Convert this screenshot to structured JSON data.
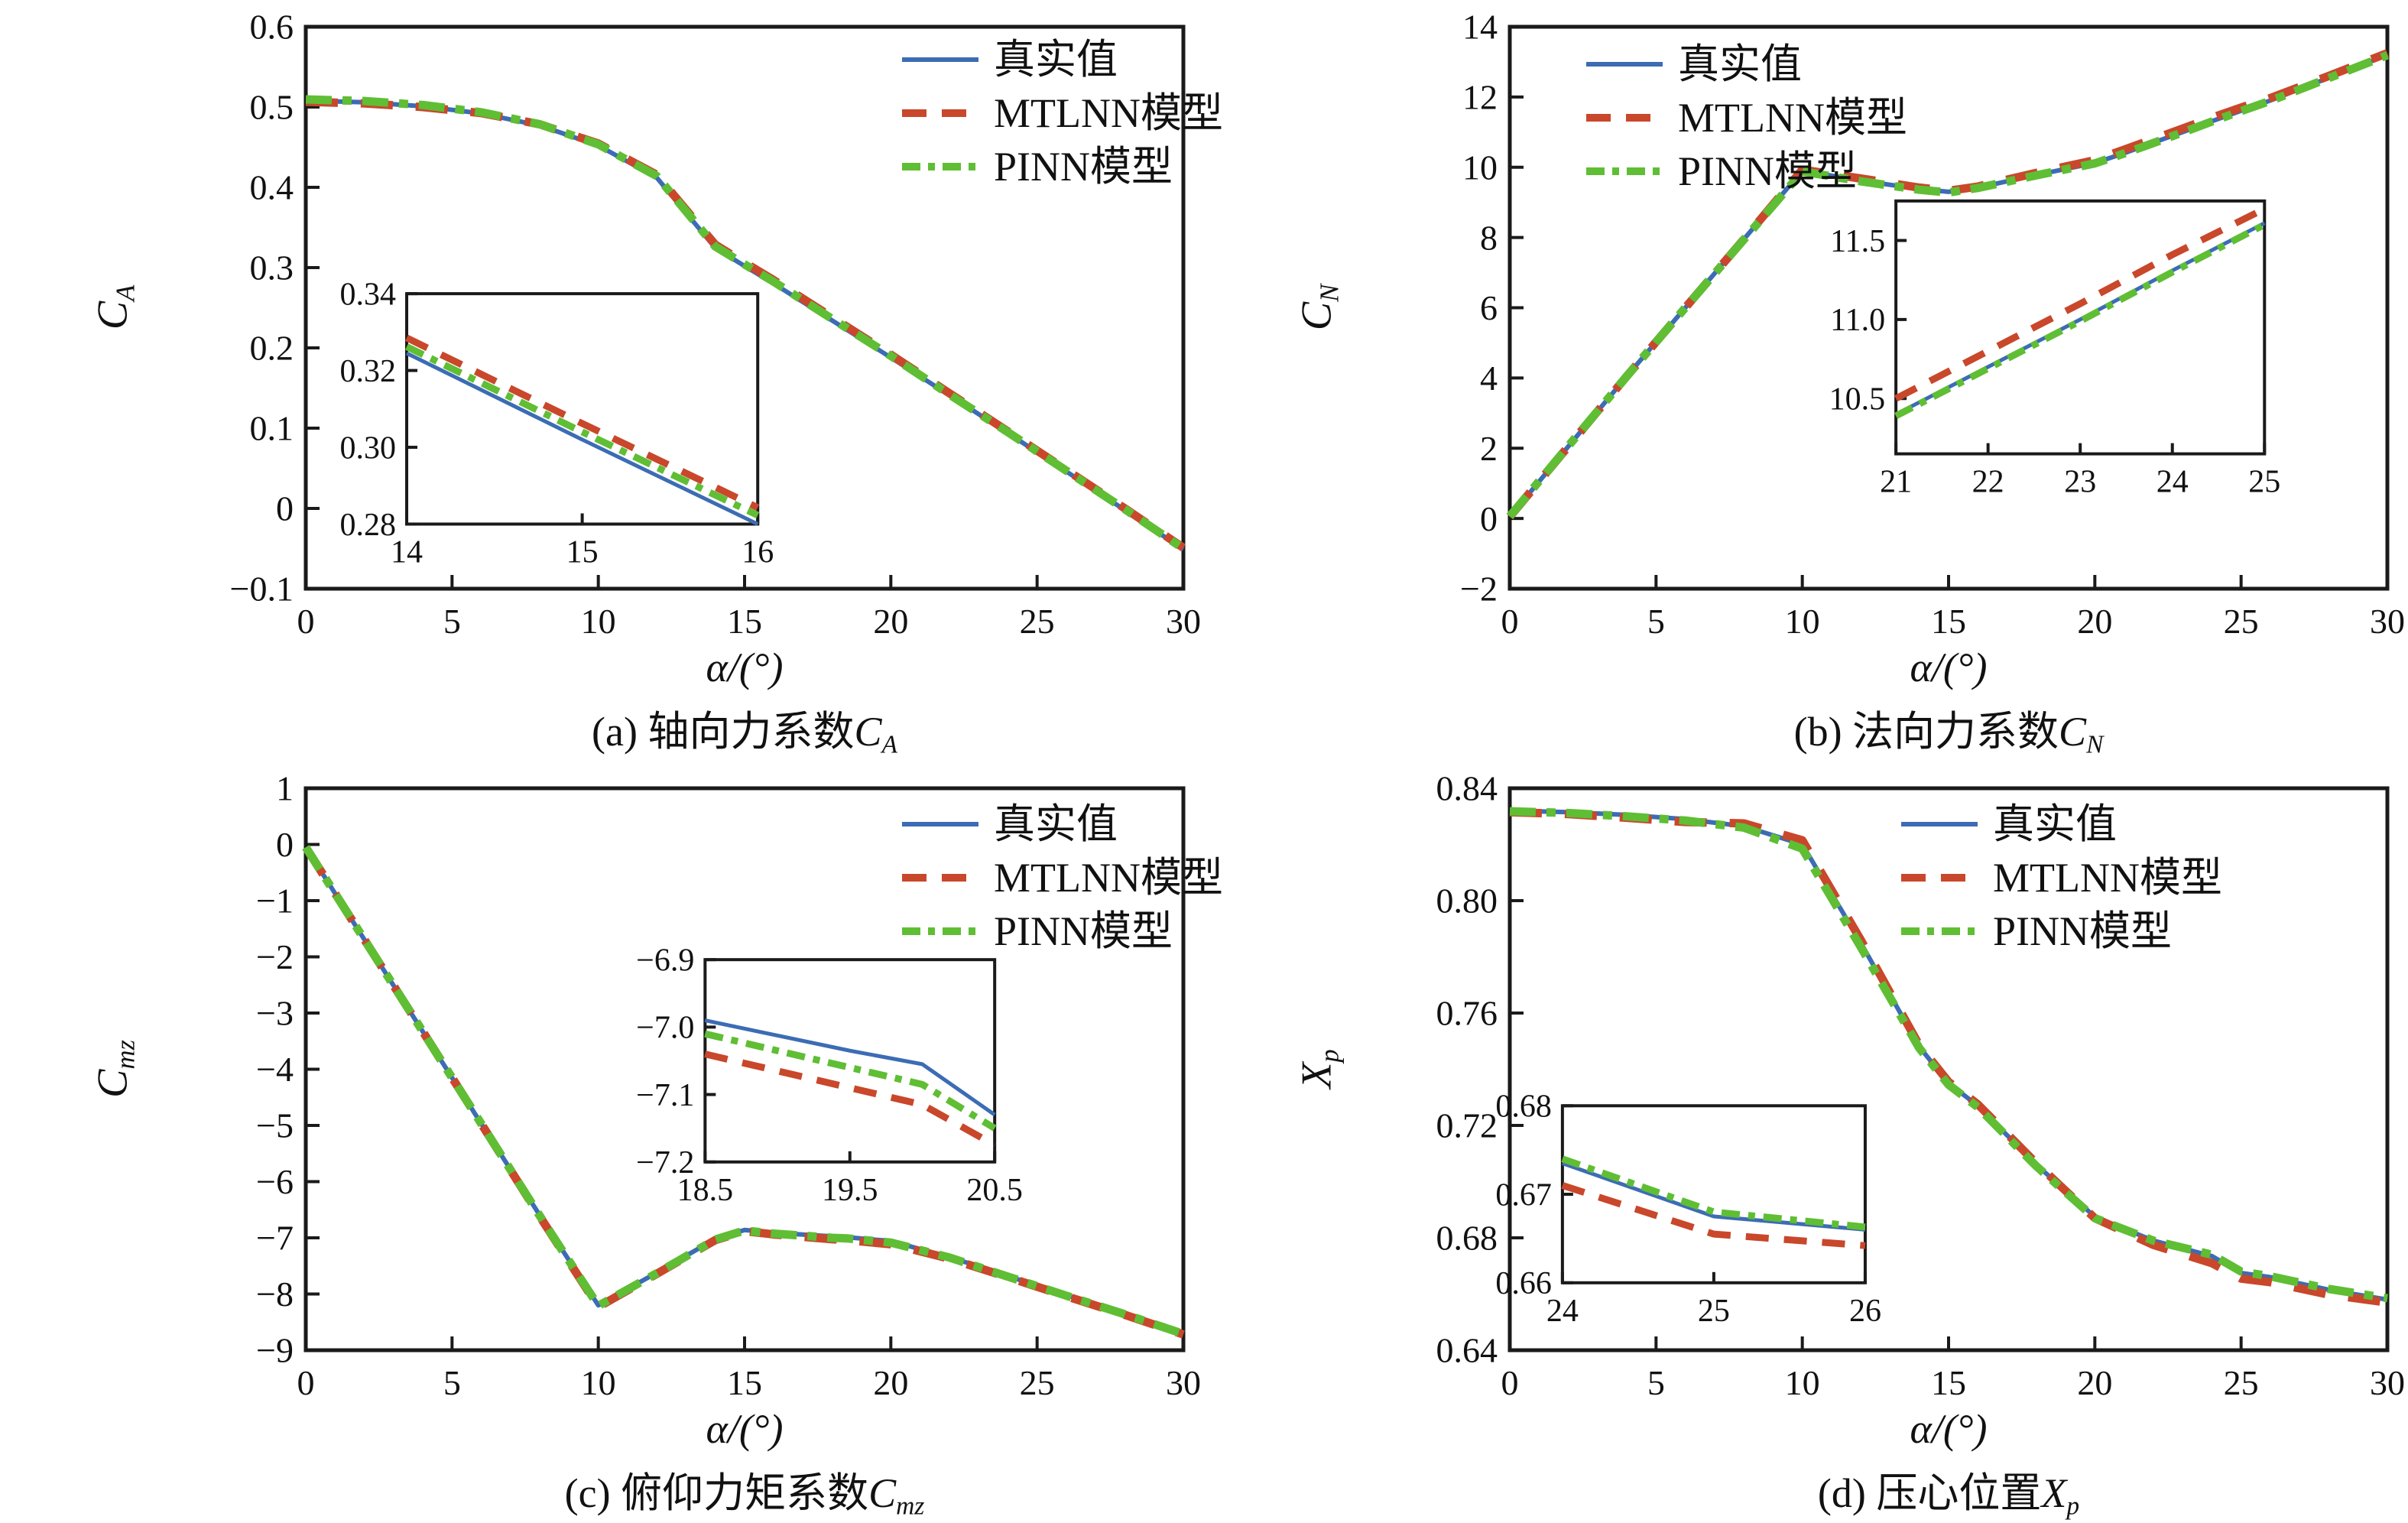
{
  "colors": {
    "true": "#3c6cb4",
    "mtlnn": "#c9472b",
    "pinn": "#5fbe34",
    "axis": "#1a1a1a"
  },
  "legend": {
    "true_label": "真实值",
    "mtlnn_label": "MTLNN模型",
    "pinn_label": "PINN模型"
  },
  "chart_data": [
    {
      "id": "a",
      "type": "line",
      "title": {
        "prefix": "(a) 轴向力系数",
        "symbol": "C",
        "symbol_sub": "A"
      },
      "xlabel": "α/(°)",
      "ylabel": {
        "symbol": "C",
        "symbol_sub": "A"
      },
      "xlim": [
        0,
        30
      ],
      "ylim": [
        -0.1,
        0.6
      ],
      "xticks": {
        "values": [
          0,
          5,
          10,
          15,
          20,
          25,
          30
        ],
        "labels": [
          "0",
          "5",
          "10",
          "15",
          "20",
          "25",
          "30"
        ]
      },
      "yticks": {
        "values": [
          0.6,
          0.5,
          0.4,
          0.3,
          0.2,
          0.1,
          0,
          -0.1
        ],
        "labels": [
          "0.6",
          "0.5",
          "0.4",
          "0.3",
          "0.2",
          "0.1",
          "0",
          "−0.1"
        ]
      },
      "grid": false,
      "legend_position": "upper-right",
      "x": [
        0,
        2,
        4,
        6,
        8,
        10,
        12,
        14,
        15,
        16,
        18,
        20,
        22,
        24,
        26,
        28,
        30
      ],
      "series": [
        {
          "name": "真实值",
          "key": "true",
          "values": [
            0.508,
            0.506,
            0.501,
            0.492,
            0.477,
            0.452,
            0.412,
            0.3245,
            0.302,
            0.28,
            0.234,
            0.188,
            0.141,
            0.094,
            0.046,
            -0.002,
            -0.051
          ]
        },
        {
          "name": "MTLNN模型",
          "key": "mtlnn",
          "values": [
            0.5065,
            0.5045,
            0.5,
            0.4925,
            0.4785,
            0.4545,
            0.4155,
            0.3285,
            0.3062,
            0.2843,
            0.238,
            0.1915,
            0.1435,
            0.096,
            0.048,
            0.0,
            -0.049
          ]
        },
        {
          "name": "PINN模型",
          "key": "pinn",
          "values": [
            0.5095,
            0.5075,
            0.5025,
            0.4935,
            0.4785,
            0.4535,
            0.414,
            0.3262,
            0.304,
            0.2823,
            0.236,
            0.19,
            0.142,
            0.095,
            0.047,
            -0.001,
            -0.05
          ]
        }
      ],
      "inset": {
        "xlim": [
          14,
          16
        ],
        "ylim": [
          0.28,
          0.34
        ],
        "xticks": {
          "values": [
            14,
            15,
            16
          ],
          "labels": [
            "14",
            "15",
            "16"
          ]
        },
        "yticks": {
          "values": [
            0.34,
            0.32,
            0.3,
            0.28
          ],
          "labels": [
            "0.34",
            "0.32",
            "0.30",
            "0.28"
          ]
        },
        "x": [
          14,
          15,
          16
        ],
        "series": [
          {
            "key": "true",
            "values": [
              0.3245,
              0.302,
              0.28
            ]
          },
          {
            "key": "mtlnn",
            "values": [
              0.3285,
              0.3062,
              0.2843
            ]
          },
          {
            "key": "pinn",
            "values": [
              0.3262,
              0.304,
              0.2823
            ]
          }
        ]
      }
    },
    {
      "id": "b",
      "type": "line",
      "title": {
        "prefix": "(b) 法向力系数",
        "symbol": "C",
        "symbol_sub": "N"
      },
      "xlabel": "α/(°)",
      "ylabel": {
        "symbol": "C",
        "symbol_sub": "N"
      },
      "xlim": [
        0,
        30
      ],
      "ylim": [
        -2,
        14
      ],
      "xticks": {
        "values": [
          0,
          5,
          10,
          15,
          20,
          25,
          30
        ],
        "labels": [
          "0",
          "5",
          "10",
          "15",
          "20",
          "25",
          "30"
        ]
      },
      "yticks": {
        "values": [
          14,
          12,
          10,
          8,
          6,
          4,
          2,
          0,
          -2
        ],
        "labels": [
          "14",
          "12",
          "10",
          "8",
          "6",
          "4",
          "2",
          "0",
          "−2"
        ]
      },
      "grid": false,
      "legend_position": "upper-left",
      "x": [
        0,
        2,
        4,
        6,
        8,
        10,
        12,
        14,
        15,
        16,
        18,
        20,
        21,
        22,
        23,
        24,
        25,
        26,
        28,
        30
      ],
      "series": [
        {
          "name": "真实值",
          "key": "true",
          "values": [
            0.05,
            2.05,
            4.05,
            6.0,
            7.95,
            9.9,
            9.62,
            9.38,
            9.3,
            9.42,
            9.78,
            10.12,
            10.4,
            10.7,
            11.0,
            11.31,
            11.61,
            11.9,
            12.55,
            13.2
          ]
        },
        {
          "name": "MTLNN模型",
          "key": "mtlnn",
          "values": [
            0.05,
            2.05,
            4.05,
            6.0,
            7.95,
            9.93,
            9.68,
            9.42,
            9.33,
            9.45,
            9.84,
            10.2,
            10.5,
            10.8,
            11.1,
            11.41,
            11.7,
            11.97,
            12.6,
            13.25
          ]
        },
        {
          "name": "PINN模型",
          "key": "pinn",
          "values": [
            0.06,
            2.06,
            4.05,
            6.0,
            7.94,
            9.88,
            9.6,
            9.36,
            9.28,
            9.41,
            9.77,
            10.11,
            10.39,
            10.69,
            10.99,
            11.3,
            11.6,
            11.89,
            12.54,
            13.19
          ]
        }
      ],
      "inset": {
        "xlim": [
          21,
          25
        ],
        "ylim": [
          10.15,
          11.75
        ],
        "xticks": {
          "values": [
            21,
            22,
            23,
            24,
            25
          ],
          "labels": [
            "21",
            "22",
            "23",
            "24",
            "25"
          ]
        },
        "yticks": {
          "values": [
            11.5,
            11.0,
            10.5
          ],
          "labels": [
            "11.5",
            "11.0",
            "10.5"
          ]
        },
        "x": [
          21,
          22,
          23,
          24,
          25
        ],
        "series": [
          {
            "key": "true",
            "values": [
              10.4,
              10.7,
              11.0,
              11.31,
              11.61
            ]
          },
          {
            "key": "mtlnn",
            "values": [
              10.5,
              10.8,
              11.1,
              11.41,
              11.7
            ]
          },
          {
            "key": "pinn",
            "values": [
              10.39,
              10.69,
              10.99,
              11.3,
              11.6
            ]
          }
        ]
      }
    },
    {
      "id": "c",
      "type": "line",
      "title": {
        "prefix": "(c) 俯仰力矩系数",
        "symbol": "C",
        "symbol_sub": "mz"
      },
      "xlabel": "α/(°)",
      "ylabel": {
        "symbol": "C",
        "symbol_sub": "mz"
      },
      "xlim": [
        0,
        30
      ],
      "ylim": [
        -9,
        1
      ],
      "xticks": {
        "values": [
          0,
          5,
          10,
          15,
          20,
          25,
          30
        ],
        "labels": [
          "0",
          "5",
          "10",
          "15",
          "20",
          "25",
          "30"
        ]
      },
      "yticks": {
        "values": [
          1,
          0,
          -1,
          -2,
          -3,
          -4,
          -5,
          -6,
          -7,
          -8,
          -9
        ],
        "labels": [
          "1",
          "0",
          "−1",
          "−2",
          "−3",
          "−4",
          "−5",
          "−6",
          "−7",
          "−8",
          "−9"
        ]
      },
      "grid": false,
      "legend_position": "upper-right",
      "x": [
        0,
        2,
        4,
        6,
        8,
        10,
        12,
        14,
        15,
        16,
        18,
        18.5,
        19.5,
        20,
        20.5,
        22,
        24,
        26,
        28,
        30
      ],
      "series": [
        {
          "name": "真实值",
          "key": "true",
          "values": [
            -0.05,
            -1.69,
            -3.33,
            -4.97,
            -6.6,
            -8.2,
            -7.62,
            -7.02,
            -6.86,
            -6.91,
            -6.975,
            -6.99,
            -7.035,
            -7.055,
            -7.13,
            -7.34,
            -7.68,
            -8.02,
            -8.36,
            -8.7
          ]
        },
        {
          "name": "MTLNN模型",
          "key": "mtlnn",
          "values": [
            -0.05,
            -1.69,
            -3.33,
            -4.97,
            -6.62,
            -8.23,
            -7.64,
            -7.04,
            -6.88,
            -6.94,
            -7.025,
            -7.04,
            -7.09,
            -7.115,
            -7.175,
            -7.37,
            -7.7,
            -8.04,
            -8.37,
            -8.72
          ]
        },
        {
          "name": "PINN模型",
          "key": "pinn",
          "values": [
            -0.05,
            -1.69,
            -3.33,
            -4.97,
            -6.61,
            -8.21,
            -7.63,
            -7.03,
            -6.87,
            -6.925,
            -7.0,
            -7.01,
            -7.06,
            -7.085,
            -7.15,
            -7.35,
            -7.69,
            -8.03,
            -8.36,
            -8.71
          ]
        }
      ],
      "inset": {
        "xlim": [
          18.5,
          20.5
        ],
        "ylim": [
          -7.2,
          -6.9
        ],
        "xticks": {
          "values": [
            18.5,
            19.5,
            20.5
          ],
          "labels": [
            "18.5",
            "19.5",
            "20.5"
          ]
        },
        "yticks": {
          "values": [
            -6.9,
            -7.0,
            -7.1,
            -7.2
          ],
          "labels": [
            "−6.9",
            "−7.0",
            "−7.1",
            "−7.2"
          ]
        },
        "x": [
          18.5,
          19.5,
          20,
          20.5
        ],
        "series": [
          {
            "key": "true",
            "values": [
              -6.99,
              -7.035,
              -7.055,
              -7.13
            ]
          },
          {
            "key": "mtlnn",
            "values": [
              -7.04,
              -7.09,
              -7.115,
              -7.175
            ]
          },
          {
            "key": "pinn",
            "values": [
              -7.01,
              -7.06,
              -7.085,
              -7.15
            ]
          }
        ]
      }
    },
    {
      "id": "d",
      "type": "line",
      "title": {
        "prefix": "(d) 压心位置",
        "symbol": "X",
        "symbol_sub": "p"
      },
      "xlabel": "α/(°)",
      "ylabel": {
        "symbol": "X",
        "symbol_sub": "p"
      },
      "xlim": [
        0,
        30
      ],
      "ylim": [
        0.64,
        0.84
      ],
      "xticks": {
        "values": [
          0,
          5,
          10,
          15,
          20,
          25,
          30
        ],
        "labels": [
          "0",
          "5",
          "10",
          "15",
          "20",
          "25",
          "30"
        ]
      },
      "yticks": {
        "values": [
          0.84,
          0.8,
          0.76,
          0.72,
          0.68,
          0.64
        ],
        "labels": [
          "0.84",
          "0.80",
          "0.76",
          "0.72",
          "0.68",
          "0.64"
        ]
      },
      "grid": false,
      "legend_position": "upper-middle-right",
      "x": [
        0,
        2,
        4,
        6,
        8,
        10,
        12,
        14,
        15,
        16,
        18,
        20,
        22,
        24,
        25,
        26,
        28,
        30
      ],
      "series": [
        {
          "name": "真实值",
          "key": "true",
          "values": [
            0.832,
            0.8315,
            0.8305,
            0.829,
            0.8265,
            0.82,
            0.785,
            0.748,
            0.735,
            0.727,
            0.706,
            0.6875,
            0.679,
            0.6735,
            0.6675,
            0.666,
            0.6615,
            0.658
          ]
        },
        {
          "name": "MTLNN模型",
          "key": "mtlnn",
          "values": [
            0.8315,
            0.8308,
            0.8295,
            0.828,
            0.8275,
            0.8215,
            0.786,
            0.7485,
            0.7355,
            0.7275,
            0.7065,
            0.687,
            0.6775,
            0.671,
            0.6655,
            0.6642,
            0.6598,
            0.657
          ]
        },
        {
          "name": "PINN模型",
          "key": "pinn",
          "values": [
            0.8318,
            0.8312,
            0.83,
            0.8285,
            0.826,
            0.8185,
            0.7835,
            0.7475,
            0.7345,
            0.7265,
            0.7055,
            0.687,
            0.679,
            0.674,
            0.668,
            0.6663,
            0.6618,
            0.6585
          ]
        }
      ],
      "inset": {
        "xlim": [
          24,
          26
        ],
        "ylim": [
          0.66,
          0.68
        ],
        "xticks": {
          "values": [
            24,
            25,
            26
          ],
          "labels": [
            "24",
            "25",
            "26"
          ]
        },
        "yticks": {
          "values": [
            0.68,
            0.67,
            0.66
          ],
          "labels": [
            "0.68",
            "0.67",
            "0.66"
          ]
        },
        "x": [
          24,
          25,
          26
        ],
        "series": [
          {
            "key": "true",
            "values": [
              0.6735,
              0.6675,
              0.666
            ]
          },
          {
            "key": "mtlnn",
            "values": [
              0.671,
              0.6655,
              0.6642
            ]
          },
          {
            "key": "pinn",
            "values": [
              0.674,
              0.668,
              0.6663
            ]
          }
        ]
      }
    }
  ]
}
